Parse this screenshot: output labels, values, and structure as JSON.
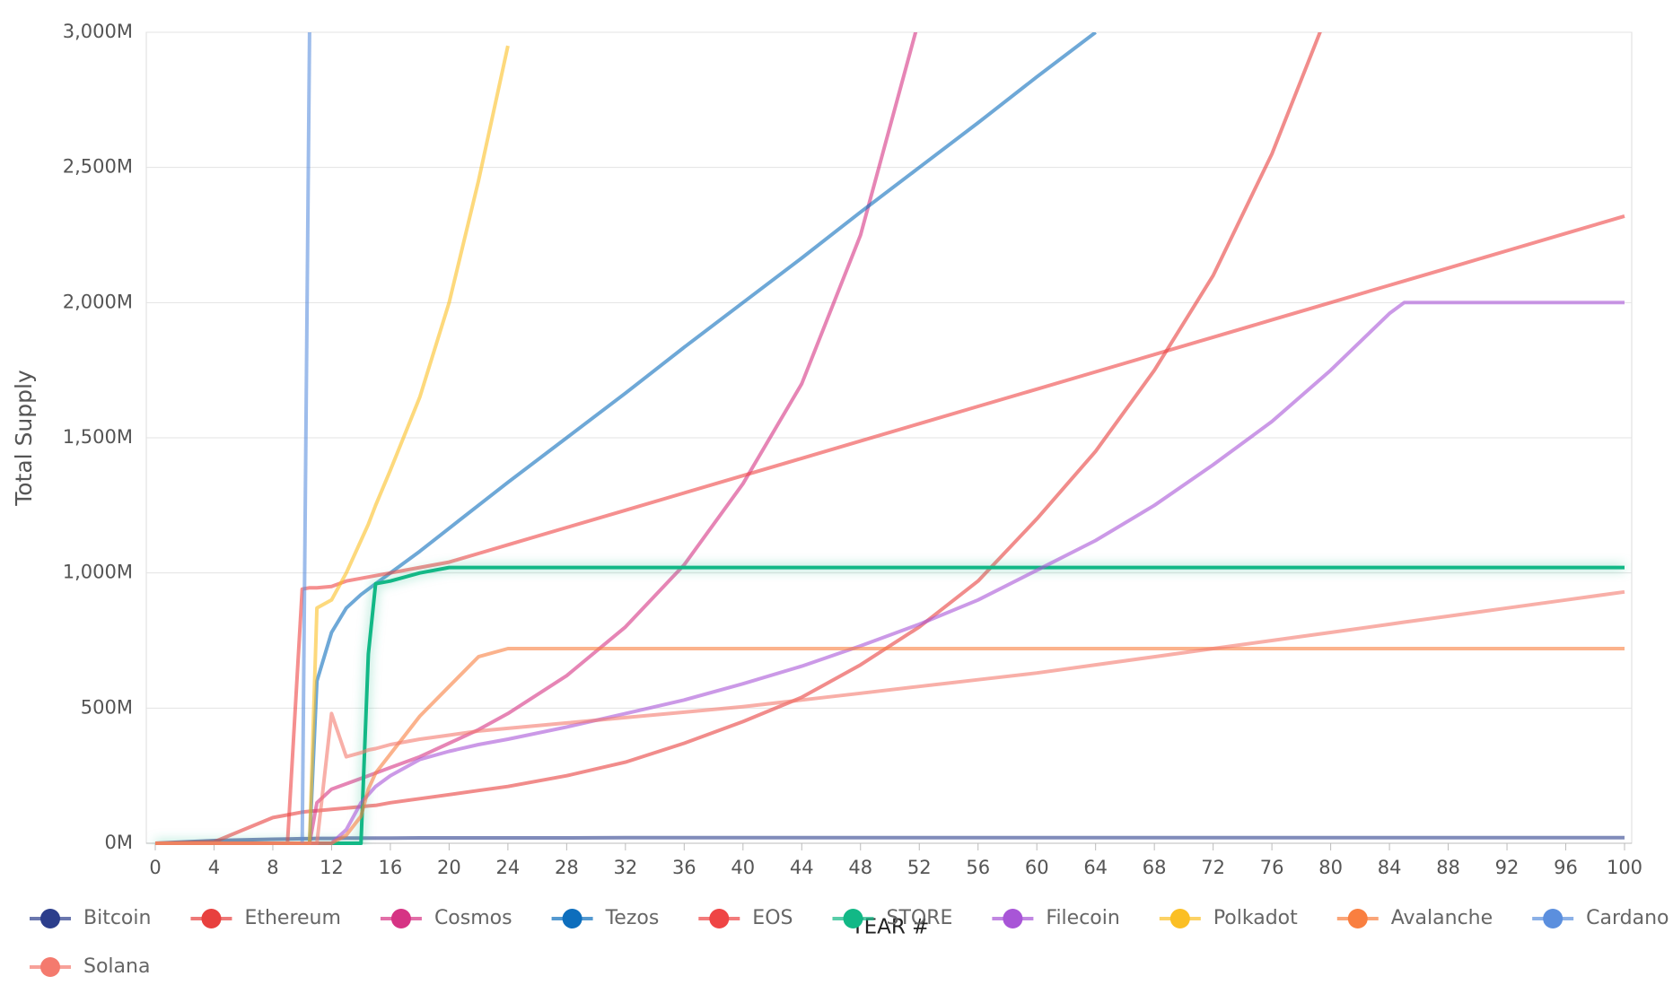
{
  "chart_data": {
    "type": "line",
    "ylabel": "Total Supply",
    "xlabel": "YEAR #",
    "x": [
      0,
      4,
      8,
      9,
      10,
      10.5,
      11,
      12,
      13,
      14,
      14.5,
      15,
      16,
      18,
      20,
      22,
      24,
      28,
      32,
      36,
      40,
      44,
      48,
      52,
      56,
      60,
      64,
      68,
      72,
      76,
      80,
      84,
      85,
      88,
      92,
      96,
      100
    ],
    "xlim": [
      0,
      100
    ],
    "xticks": [
      0,
      4,
      8,
      12,
      16,
      20,
      24,
      28,
      32,
      36,
      40,
      44,
      48,
      52,
      56,
      60,
      64,
      68,
      72,
      76,
      80,
      84,
      88,
      92,
      96,
      100
    ],
    "ylim": [
      0,
      3000
    ],
    "yticks": [
      {
        "value": 0,
        "label": "0M"
      },
      {
        "value": 500,
        "label": "500M"
      },
      {
        "value": 1000,
        "label": "1,000M"
      },
      {
        "value": 1500,
        "label": "1,500M"
      },
      {
        "value": 2000,
        "label": "2,000M"
      },
      {
        "value": 2500,
        "label": "2,500M"
      },
      {
        "value": 3000,
        "label": "3,000M"
      }
    ],
    "grid": true,
    "legend": "bottom",
    "series": [
      {
        "name": "Bitcoin",
        "color": "#2c3e8c",
        "values": [
          0,
          10,
          15,
          16,
          17,
          17,
          18,
          18,
          19,
          19,
          19,
          19,
          19,
          20,
          20,
          20,
          20,
          20,
          21,
          21,
          21,
          21,
          21,
          21,
          21,
          21,
          21,
          21,
          21,
          21,
          21,
          21,
          21,
          21,
          21,
          21,
          21
        ]
      },
      {
        "name": "Ethereum",
        "color": "#e8403e",
        "values": [
          0,
          5,
          95,
          105,
          115,
          118,
          120,
          125,
          130,
          135,
          138,
          140,
          150,
          165,
          180,
          195,
          210,
          250,
          300,
          370,
          450,
          540,
          660,
          800,
          970,
          1200,
          1450,
          1750,
          2100,
          2550,
          3100,
          null,
          null,
          null,
          null,
          null,
          null
        ]
      },
      {
        "name": "Cosmos",
        "color": "#d63384",
        "values": [
          0,
          0,
          0,
          0,
          0,
          0,
          150,
          200,
          220,
          240,
          250,
          260,
          280,
          320,
          370,
          420,
          480,
          620,
          800,
          1030,
          1330,
          1700,
          2250,
          3050,
          null,
          null,
          null,
          null,
          null,
          null,
          null,
          null,
          null,
          null,
          null,
          null,
          null
        ]
      },
      {
        "name": "Tezos",
        "color": "#0d6ebd",
        "values": [
          0,
          0,
          0,
          0,
          0,
          0,
          600,
          780,
          870,
          920,
          940,
          960,
          1000,
          1080,
          1165,
          1250,
          1335,
          1500,
          1665,
          1835,
          2000,
          2165,
          2335,
          2500,
          2665,
          2835,
          3000,
          null,
          null,
          null,
          null,
          null,
          null,
          null,
          null,
          null,
          null
        ]
      },
      {
        "name": "EOS",
        "color": "#ef4444",
        "values": [
          0,
          0,
          0,
          0,
          940,
          945,
          945,
          950,
          970,
          980,
          985,
          990,
          1000,
          1020,
          1040,
          1072,
          1104,
          1168,
          1232,
          1296,
          1360,
          1424,
          1488,
          1552,
          1616,
          1680,
          1744,
          1808,
          1872,
          1936,
          2000,
          2064,
          2080,
          2128,
          2192,
          2256,
          2320
        ]
      },
      {
        "name": "STORE",
        "color": "#12b886",
        "values": [
          0,
          0,
          0,
          0,
          0,
          0,
          0,
          0,
          0,
          0,
          700,
          960,
          970,
          1000,
          1020,
          1020,
          1020,
          1020,
          1020,
          1020,
          1020,
          1020,
          1020,
          1020,
          1020,
          1020,
          1020,
          1020,
          1020,
          1020,
          1020,
          1020,
          1020,
          1020,
          1020,
          1020,
          1020
        ]
      },
      {
        "name": "Filecoin",
        "color": "#a855d7",
        "values": [
          0,
          0,
          0,
          0,
          0,
          0,
          0,
          0,
          50,
          150,
          180,
          210,
          250,
          310,
          340,
          365,
          385,
          430,
          480,
          530,
          590,
          655,
          730,
          810,
          900,
          1010,
          1120,
          1250,
          1400,
          1560,
          1750,
          1960,
          2000,
          2000,
          2000,
          2000,
          2000
        ]
      },
      {
        "name": "Polkadot",
        "color": "#fbbf24",
        "values": [
          0,
          0,
          0,
          0,
          0,
          0,
          870,
          900,
          1000,
          1120,
          1180,
          1250,
          1380,
          1650,
          2000,
          2450,
          2950,
          null,
          null,
          null,
          null,
          null,
          null,
          null,
          null,
          null,
          null,
          null,
          null,
          null,
          null,
          null,
          null,
          null,
          null,
          null,
          null
        ]
      },
      {
        "name": "Avalanche",
        "color": "#f97f40",
        "values": [
          0,
          0,
          0,
          0,
          0,
          0,
          0,
          0,
          30,
          100,
          200,
          260,
          330,
          470,
          580,
          690,
          720,
          720,
          720,
          720,
          720,
          720,
          720,
          720,
          720,
          720,
          720,
          720,
          720,
          720,
          720,
          720,
          720,
          720,
          720,
          720,
          720
        ]
      },
      {
        "name": "Cardano",
        "color": "#5b8fde",
        "values": [
          null,
          null,
          null,
          null,
          0,
          3000,
          null,
          null,
          null,
          null,
          null,
          null,
          null,
          null,
          null,
          null,
          null,
          null,
          null,
          null,
          null,
          null,
          null,
          null,
          null,
          null,
          null,
          null,
          null,
          null,
          null,
          null,
          null,
          null,
          null,
          null,
          null
        ]
      },
      {
        "name": "Solana",
        "color": "#f47a6e",
        "values": [
          0,
          0,
          0,
          0,
          0,
          0,
          0,
          480,
          320,
          335,
          345,
          350,
          365,
          385,
          400,
          415,
          425,
          445,
          465,
          485,
          505,
          530,
          555,
          580,
          605,
          630,
          660,
          690,
          720,
          750,
          780,
          810,
          818,
          840,
          870,
          900,
          930
        ]
      }
    ]
  }
}
